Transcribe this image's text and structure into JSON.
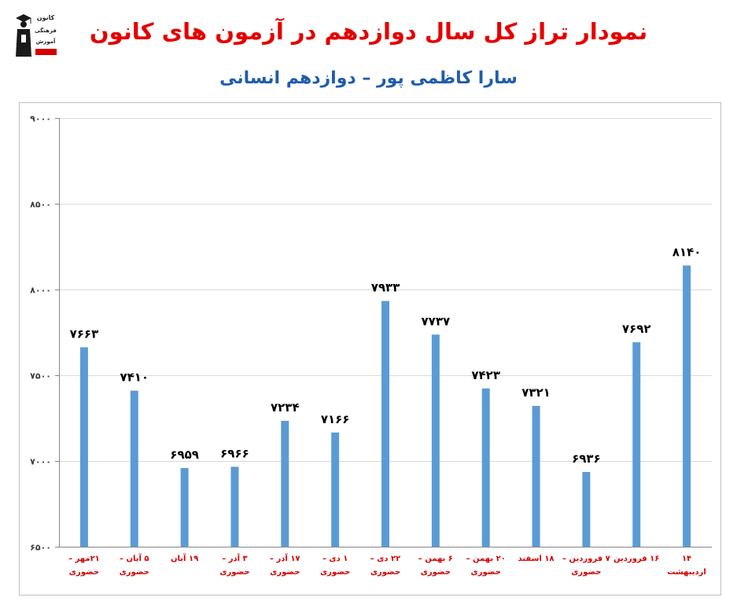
{
  "logo": {
    "icon": "graduate-figure-icon",
    "lines": [
      "کانون",
      "فرهنگی",
      "آموزش"
    ],
    "tag_color": "#d40000"
  },
  "chart_data": {
    "type": "bar",
    "title": "نمودار تراز کل سال دوازدهم در آزمون های کانون",
    "subtitle": "سارا کاظمی پور – دوازدهم انسانی",
    "categories": [
      "۲۱مهر – حضوری",
      "۵ آبان – حضوری",
      "۱۹ آبان",
      "۳ آذر – حضوری",
      "۱۷ آذر – حضوری",
      "۱ دی – حضوری",
      "۲۲ دی – حضوری",
      "۶ بهمن – حضوری",
      "۲۰ بهمن – حضوری",
      "۱۸ اسفند",
      "۷ فروردین – حضوری",
      "۱۶ فروردین",
      "۱۴ اردیبهشت"
    ],
    "values": [
      7663,
      7410,
      6959,
      6966,
      7234,
      7166,
      7933,
      7737,
      7423,
      7321,
      6936,
      7692,
      8140
    ],
    "data_labels": [
      "۷۶۶۳",
      "۷۴۱۰",
      "۶۹۵۹",
      "۶۹۶۶",
      "۷۲۳۴",
      "۷۱۶۶",
      "۷۹۳۳",
      "۷۷۳۷",
      "۷۴۲۳",
      "۷۳۲۱",
      "۶۹۳۶",
      "۷۶۹۲",
      "۸۱۴۰"
    ],
    "ylim": [
      6500,
      9000
    ],
    "yticks": [
      6500,
      7000,
      7500,
      8000,
      8500,
      9000
    ],
    "ytick_labels": [
      "۶۵۰۰",
      "۷۰۰۰",
      "۷۵۰۰",
      "۸۰۰۰",
      "۸۵۰۰",
      "۹۰۰۰"
    ],
    "grid": true,
    "colors": {
      "bar": "#5b9bd5",
      "title": "#e50000",
      "subtitle": "#1f5cad",
      "category_label": "#d40000",
      "data_label": "#000000",
      "grid": "#d9d9d9",
      "axis": "#868686"
    }
  }
}
